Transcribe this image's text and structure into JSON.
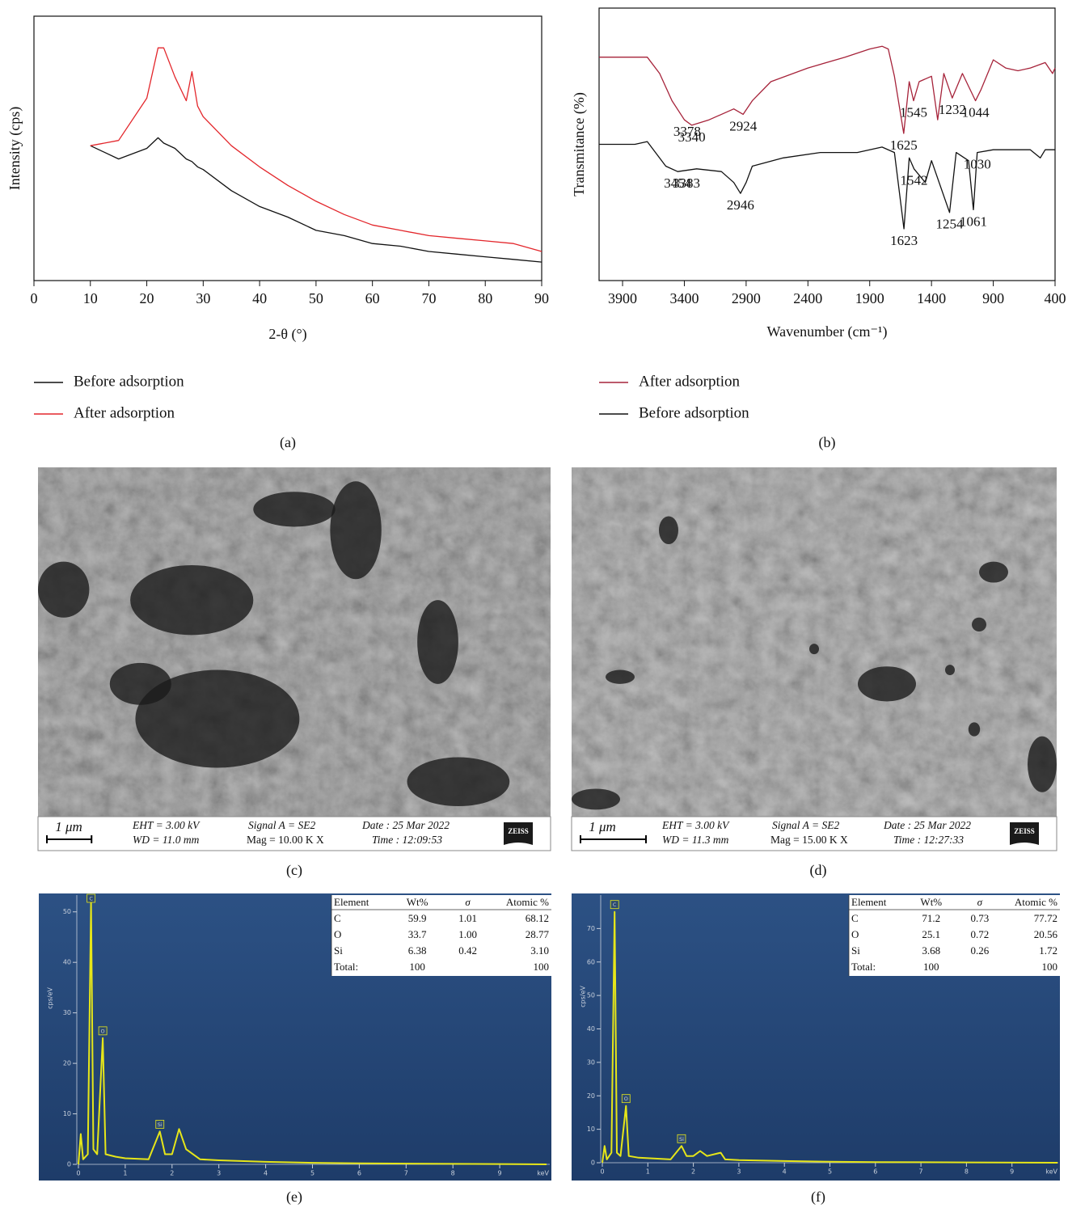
{
  "chart_data": [
    {
      "type": "line",
      "label": "(a)",
      "xlabel": "2-θ (°)",
      "ylabel": "Intensity (cps)",
      "x": [
        10,
        15,
        20,
        22,
        23,
        25,
        27,
        28,
        29,
        30,
        35,
        40,
        45,
        50,
        55,
        60,
        65,
        70,
        75,
        80,
        85,
        90
      ],
      "xlim": [
        0,
        90
      ],
      "xticks": [
        0,
        10,
        20,
        30,
        40,
        50,
        60,
        70,
        80,
        90
      ],
      "ylim": [
        0,
        100
      ],
      "grid": false,
      "legend": "below",
      "series": [
        {
          "name": "Before adsorption",
          "color": "#111111",
          "values": [
            51,
            46,
            50,
            54,
            52,
            50,
            46,
            45,
            43,
            42,
            34,
            28,
            24,
            19,
            17,
            14,
            13,
            11,
            10,
            9,
            8,
            7
          ]
        },
        {
          "name": "After adsorption",
          "color": "#e3262b",
          "values": [
            51,
            53,
            69,
            88,
            88,
            77,
            68,
            79,
            66,
            62,
            51,
            43,
            36,
            30,
            25,
            21,
            19,
            17,
            16,
            15,
            14,
            11
          ]
        }
      ]
    },
    {
      "type": "line",
      "label": "(b)",
      "xlabel": "Wavenumber (cm⁻¹)",
      "ylabel": "Transmitance (%)",
      "xlim": [
        4090,
        400
      ],
      "xticks": [
        3900,
        3400,
        2900,
        2400,
        1900,
        1400,
        900,
        400
      ],
      "ylim": [
        0,
        100
      ],
      "grid": false,
      "legend": "below",
      "series": [
        {
          "name": "After adsorption",
          "color": "#a6233a",
          "x": [
            4090,
            3700,
            3600,
            3500,
            3400,
            3340,
            3200,
            3000,
            2924,
            2850,
            2700,
            2400,
            2100,
            1900,
            1800,
            1750,
            1700,
            1625,
            1580,
            1545,
            1500,
            1400,
            1350,
            1300,
            1232,
            1150,
            1044,
            1000,
            900,
            800,
            700,
            600,
            480,
            420,
            400
          ],
          "values": [
            82,
            82,
            76,
            66,
            59,
            57,
            59,
            63,
            61,
            66,
            73,
            78,
            82,
            85,
            86,
            85,
            75,
            54,
            73,
            66,
            73,
            75,
            59,
            76,
            67,
            76,
            66,
            70,
            81,
            78,
            77,
            78,
            80,
            76,
            78
          ]
        },
        {
          "name": "Before adsorption",
          "color": "#111111",
          "x": [
            4090,
            3800,
            3700,
            3550,
            3454,
            3300,
            3100,
            3000,
            2946,
            2900,
            2850,
            2600,
            2300,
            2000,
            1900,
            1800,
            1700,
            1623,
            1580,
            1542,
            1450,
            1400,
            1254,
            1200,
            1100,
            1061,
            1030,
            900,
            700,
            600,
            520,
            480,
            400
          ],
          "values": [
            50,
            50,
            51,
            42,
            40,
            41,
            40,
            36,
            32,
            36,
            42,
            45,
            47,
            47,
            48,
            49,
            47,
            19,
            45,
            41,
            36,
            44,
            25,
            47,
            44,
            26,
            47,
            48,
            48,
            48,
            45,
            48,
            48
          ]
        }
      ],
      "annotations": [
        {
          "x": 3340,
          "label": "3340",
          "series": 0
        },
        {
          "x": 3378,
          "label": "3378",
          "series": 0
        },
        {
          "x": 2924,
          "label": "2924",
          "series": 0
        },
        {
          "x": 1625,
          "label": "1625",
          "series": 0
        },
        {
          "x": 1545,
          "label": "1545",
          "series": 0
        },
        {
          "x": 1232,
          "label": "1232",
          "series": 0
        },
        {
          "x": 1044,
          "label": "1044",
          "series": 0
        },
        {
          "x": 3454,
          "label": "3454",
          "series": 1
        },
        {
          "x": 3383,
          "label": "3383",
          "series": 1
        },
        {
          "x": 2946,
          "label": "2946",
          "series": 1
        },
        {
          "x": 1623,
          "label": "1623",
          "series": 1
        },
        {
          "x": 1542,
          "label": "1542",
          "series": 1
        },
        {
          "x": 1254,
          "label": "1254",
          "series": 1
        },
        {
          "x": 1061,
          "label": "1061",
          "series": 1
        },
        {
          "x": 1030,
          "label": "1030",
          "series": 1
        }
      ]
    },
    {
      "type": "area",
      "label": "(e)",
      "xlabel": "keV",
      "ylabel": "cps/eV",
      "xlim": [
        0,
        10
      ],
      "xticks": [
        0,
        1,
        2,
        3,
        4,
        5,
        6,
        7,
        8,
        9
      ],
      "ylim": [
        0,
        53
      ],
      "yticks": [
        0,
        10,
        20,
        30,
        40,
        50
      ],
      "grid": false,
      "color": "#e6e619",
      "x": [
        0,
        0.05,
        0.1,
        0.2,
        0.27,
        0.32,
        0.4,
        0.52,
        0.58,
        0.8,
        1.0,
        1.5,
        1.74,
        1.85,
        2.0,
        2.15,
        2.3,
        2.6,
        3,
        4,
        5,
        6,
        8,
        10
      ],
      "values": [
        0,
        6,
        1,
        2,
        52,
        3,
        2,
        25,
        2,
        1.5,
        1.2,
        1,
        6.5,
        2,
        2,
        7,
        3,
        1,
        0.8,
        0.5,
        0.3,
        0.2,
        0.1,
        0
      ],
      "annotations": [
        {
          "x": 0.27,
          "label": "C"
        },
        {
          "x": 0.52,
          "label": "O"
        },
        {
          "x": 1.74,
          "label": "Si"
        }
      ],
      "table": {
        "header": [
          "Element",
          "Wt%",
          "σ",
          "Atomic %"
        ],
        "rows": [
          [
            "C",
            "59.9",
            "1.01",
            "68.12"
          ],
          [
            "O",
            "33.7",
            "1.00",
            "28.77"
          ],
          [
            "Si",
            "6.38",
            "0.42",
            "3.10"
          ],
          [
            "Total:",
            "100",
            null,
            "100"
          ]
        ]
      }
    },
    {
      "type": "area",
      "label": "(f)",
      "xlabel": "keV",
      "ylabel": "cps/eV",
      "xlim": [
        0,
        10
      ],
      "xticks": [
        0,
        1,
        2,
        3,
        4,
        5,
        6,
        7,
        8,
        9
      ],
      "ylim": [
        0,
        80
      ],
      "yticks": [
        0,
        10,
        20,
        30,
        40,
        50,
        60,
        70
      ],
      "grid": false,
      "color": "#e6e619",
      "x": [
        0,
        0.05,
        0.1,
        0.2,
        0.27,
        0.32,
        0.4,
        0.52,
        0.58,
        0.8,
        1.5,
        1.74,
        1.85,
        2.0,
        2.15,
        2.3,
        2.6,
        2.7,
        3,
        4,
        5,
        6,
        8,
        10
      ],
      "values": [
        0,
        5,
        1,
        3,
        75,
        3,
        2,
        17,
        2,
        1.5,
        1,
        5,
        2,
        2,
        3.5,
        2,
        3,
        1,
        0.8,
        0.5,
        0.3,
        0.2,
        0.1,
        0
      ],
      "annotations": [
        {
          "x": 0.27,
          "label": "C"
        },
        {
          "x": 0.52,
          "label": "O"
        },
        {
          "x": 1.74,
          "label": "Si"
        }
      ],
      "table": {
        "header": [
          "Element",
          "Wt%",
          "σ",
          "Atomic %"
        ],
        "rows": [
          [
            "C",
            "71.2",
            "0.73",
            "77.72"
          ],
          [
            "O",
            "25.1",
            "0.72",
            "20.56"
          ],
          [
            "Si",
            "3.68",
            "0.26",
            "1.72"
          ],
          [
            "Total:",
            "100",
            null,
            "100"
          ]
        ]
      }
    }
  ],
  "sem_panels": [
    {
      "label": "(c)",
      "scale_bar": "1 μm",
      "eht": "EHT = 3.00 kV",
      "wd": "WD = 11.0 mm",
      "signal": "Signal A = SE2",
      "mag": "Mag = 10.00 K X",
      "date": "Date : 25 Mar 2022",
      "time": "Time : 12:09:53",
      "logo": "ZEISS"
    },
    {
      "label": "(d)",
      "scale_bar": "1 μm",
      "eht": "EHT = 3.00 kV",
      "wd": "WD = 11.3 mm",
      "signal": "Signal A = SE2",
      "mag": "Mag = 15.00 K X",
      "date": "Date : 25 Mar 2022",
      "time": "Time : 12:27:33",
      "logo": "ZEISS"
    }
  ]
}
